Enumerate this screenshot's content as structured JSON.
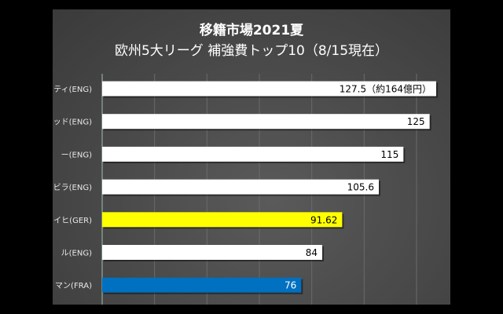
{
  "chart_data": {
    "type": "bar",
    "orientation": "horizontal",
    "title": "移籍市場2021夏",
    "subtitle": "欧州5大リーグ 補強費トップ10（8/15現在）",
    "categories": [
      "ティ(ENG)",
      "ッド(ENG)",
      "ー(ENG)",
      "ビラ(ENG)",
      "イヒ(GER)",
      "ル(ENG)",
      "マン(FRA)"
    ],
    "values": [
      127.5,
      125,
      115,
      105.6,
      91.62,
      84,
      76
    ],
    "data_labels": [
      "127.5（約164億円）",
      "125",
      "115",
      "105.6",
      "91.62",
      "84",
      "76"
    ],
    "bar_colors": [
      "#ffffff",
      "#ffffff",
      "#ffffff",
      "#ffffff",
      "#ffff00",
      "#ffffff",
      "#0070c0"
    ],
    "label_colors": [
      "#000000",
      "#000000",
      "#000000",
      "#000000",
      "#000000",
      "#000000",
      "#ffffff"
    ],
    "xlim": [
      0,
      132
    ],
    "grid_step": 20,
    "grid": true,
    "background": "#4a4a4a"
  }
}
